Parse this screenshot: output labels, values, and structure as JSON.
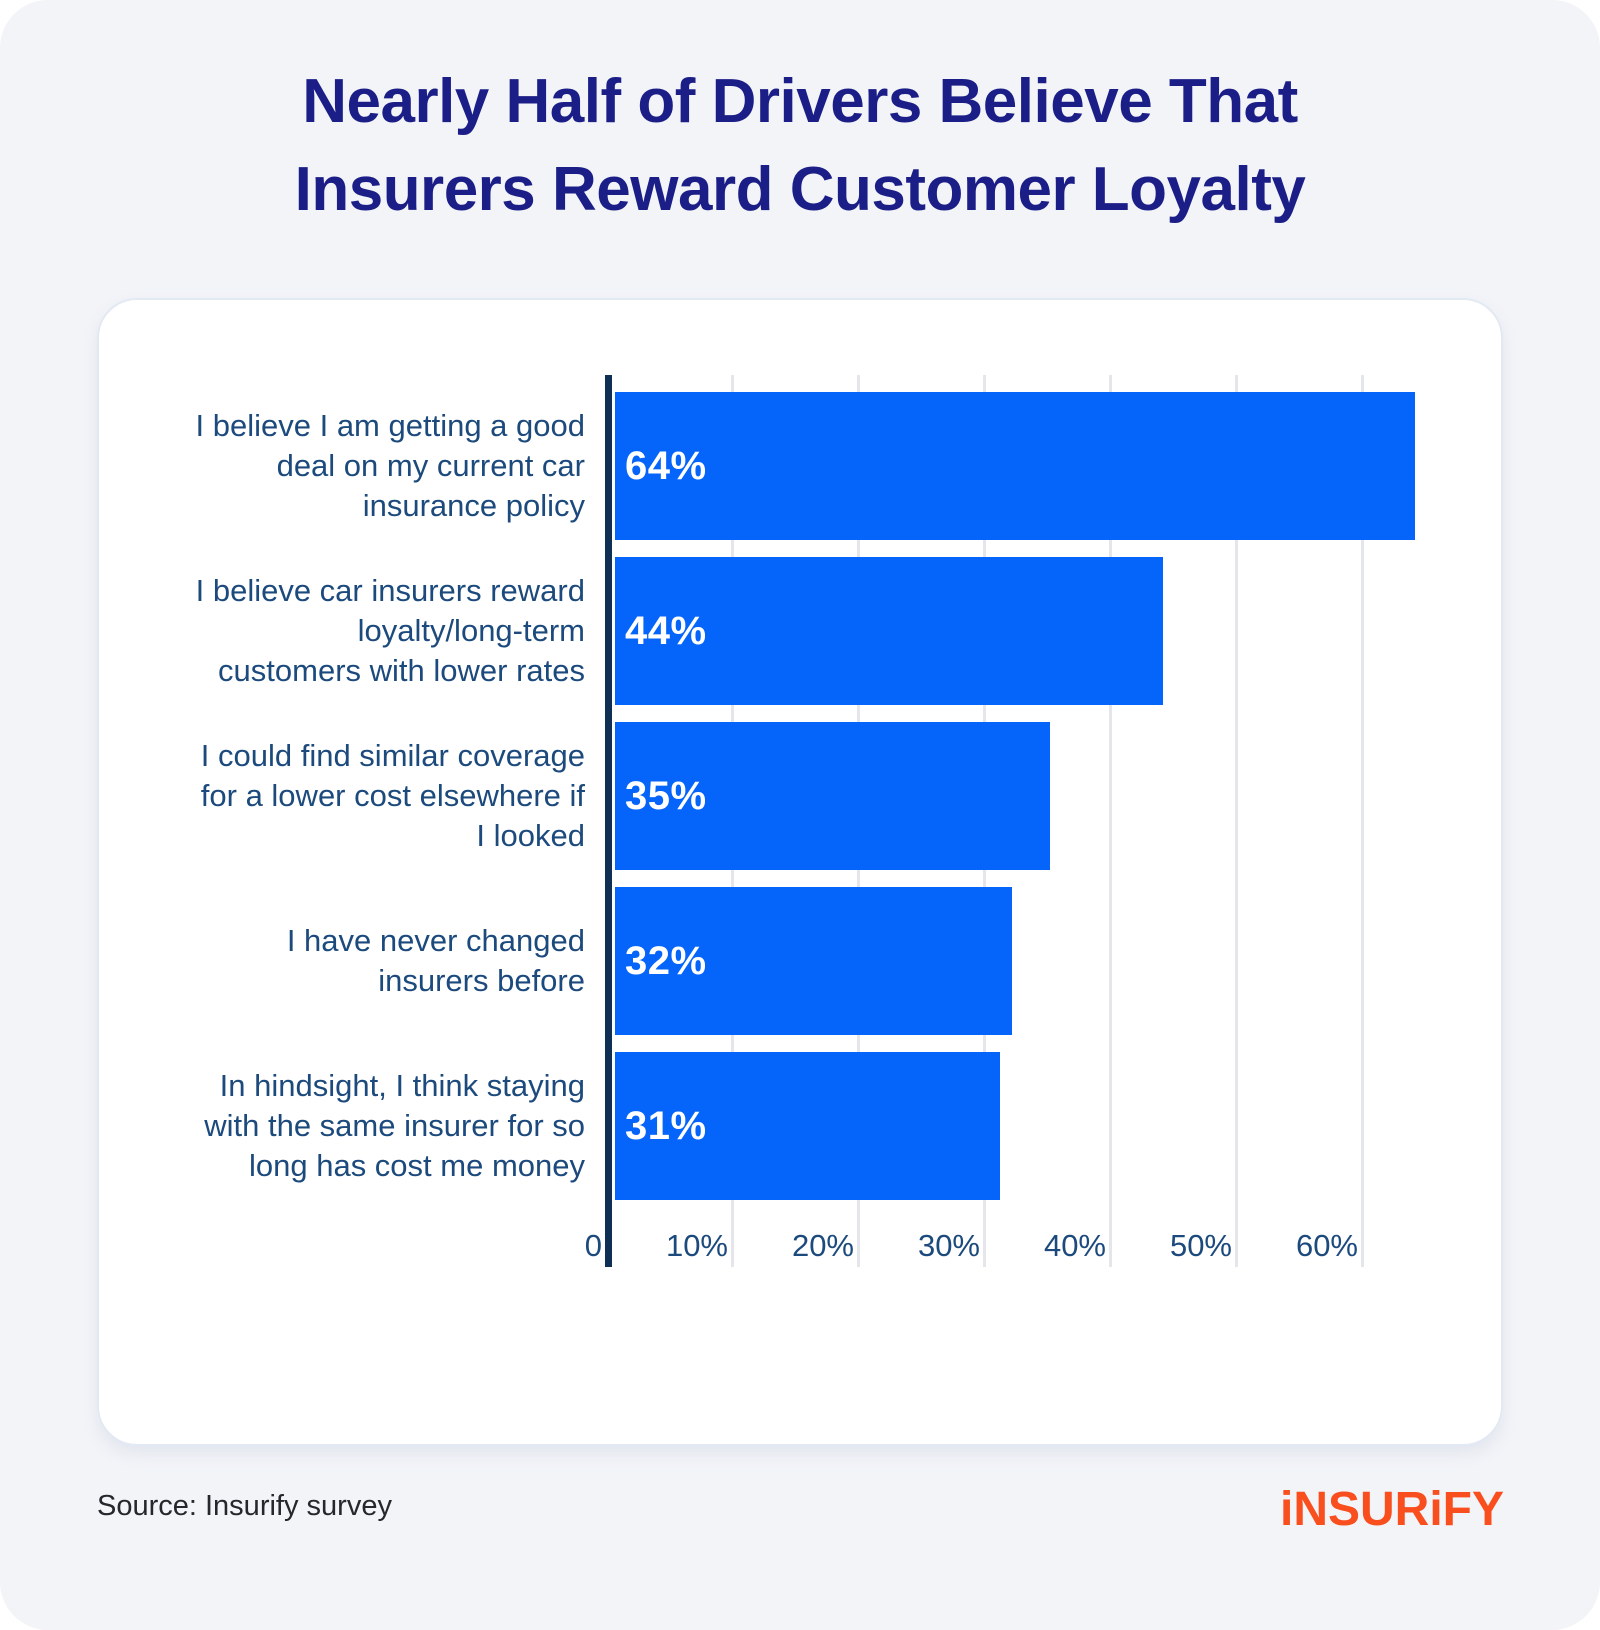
{
  "page": {
    "title": "Nearly Half of Drivers Believe That\nInsurers Reward Customer Loyalty",
    "title_color": "#1b1e87",
    "background_color": "#f3f4f8",
    "source_note": "Source: Insurify survey",
    "brand": {
      "name": "insurify",
      "wordmark_text": "iNSURiFY",
      "color": "#f94e1e"
    }
  },
  "chart_data": {
    "type": "bar",
    "orientation": "horizontal",
    "title": "Nearly Half of Drivers Believe That Insurers Reward Customer Loyalty",
    "categories": [
      "I believe I am getting a good\ndeal on my current car\ninsurance policy",
      "I believe car insurers reward\nloyalty/long-term\ncustomers with lower rates",
      "I could find similar coverage\nfor a lower cost elsewhere if\nI looked",
      "I have never changed\ninsurers before",
      "In hindsight, I think staying\nwith the same insurer for so\nlong has cost me money"
    ],
    "values": [
      64,
      44,
      35,
      32,
      31
    ],
    "value_labels": [
      "64%",
      "44%",
      "35%",
      "32%",
      "31%"
    ],
    "x_axis": {
      "unit": "percent",
      "tick_values": [
        0,
        10,
        20,
        30,
        40,
        50,
        60
      ],
      "tick_labels": [
        "0",
        "10%",
        "20%",
        "30%",
        "40%",
        "50%",
        "60%"
      ],
      "range": [
        0,
        64
      ],
      "gridlines": true
    },
    "legend": null,
    "colors": {
      "bar": "#0565fa",
      "value_label": "#ffffff",
      "category_label": "#1c4a7d",
      "tick_label": "#1c4a7d",
      "axis_line": "#0f2f55",
      "gridline": "#e4e6ec"
    }
  }
}
